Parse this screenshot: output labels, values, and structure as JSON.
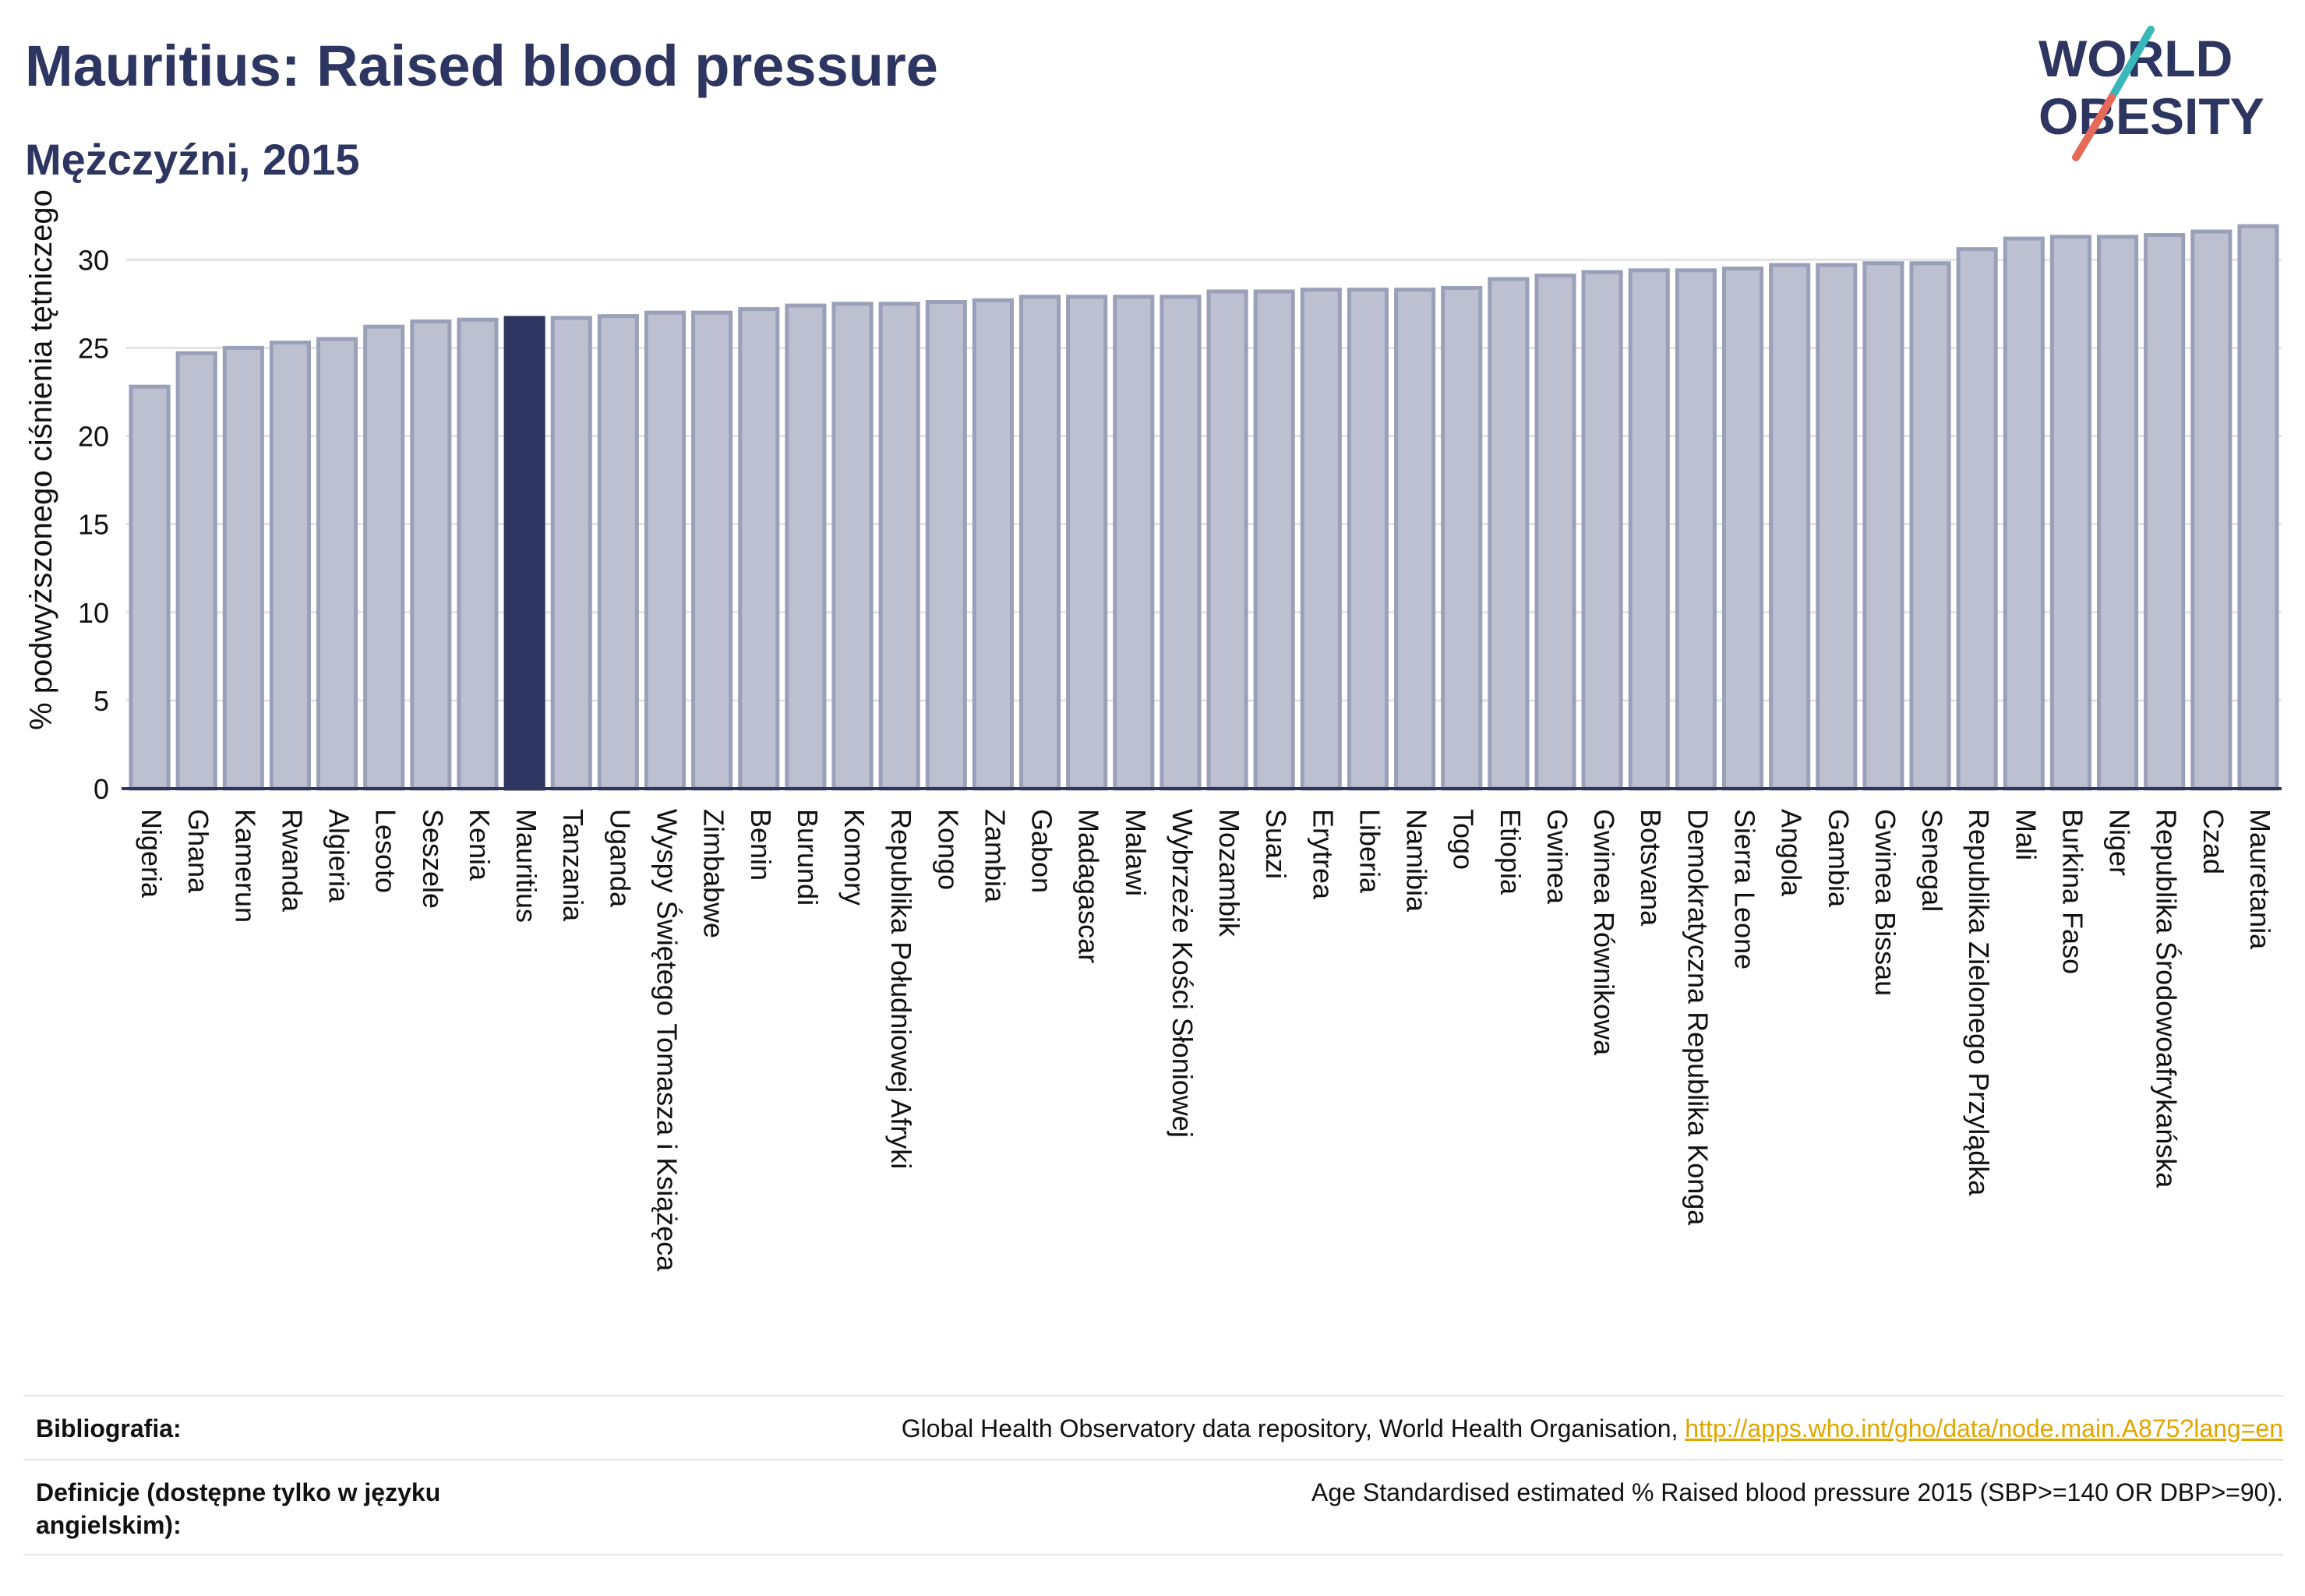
{
  "header": {
    "title": "Mauritius: Raised blood pressure",
    "subtitle": "Mężczyźni, 2015"
  },
  "logo": {
    "line1": "WORLD",
    "line2": "OBESITY",
    "colors": {
      "text": "#2d3561",
      "slash_top": "#3ab7b9",
      "slash_bottom": "#e56a5a"
    }
  },
  "colors": {
    "bar_fill": "#bcc0d0",
    "bar_stroke": "#9aa0b8",
    "highlight": "#2d3561",
    "axis": "#2d3561",
    "grid": "#e3e3e3"
  },
  "chart_data": {
    "type": "bar",
    "title": "Mauritius: Raised blood pressure",
    "subtitle": "Mężczyźni, 2015",
    "ylabel": "% podwyższonego ciśnienia tętniczego",
    "xlabel": "",
    "ylim": [
      0,
      32
    ],
    "yticks": [
      0,
      5,
      10,
      15,
      20,
      25,
      30
    ],
    "grid": true,
    "highlight": "Mauritius",
    "categories": [
      "Nigeria",
      "Ghana",
      "Kamerun",
      "Rwanda",
      "Algieria",
      "Lesoto",
      "Seszele",
      "Kenia",
      "Mauritius",
      "Tanzania",
      "Uganda",
      "Wyspy Świętego Tomasza i Książęca",
      "Zimbabwe",
      "Benin",
      "Burundi",
      "Komory",
      "Republika Południowej Afryki",
      "Kongo",
      "Zambia",
      "Gabon",
      "Madagascar",
      "Malawi",
      "Wybrzeże Kości Słoniowej",
      "Mozambik",
      "Suazi",
      "Erytrea",
      "Liberia",
      "Namibia",
      "Togo",
      "Etiopia",
      "Gwinea",
      "Gwinea Równikowa",
      "Botsvana",
      "Demokratyczna Republika Konga",
      "Sierra Leone",
      "Angola",
      "Gambia",
      "Gwinea Bissau",
      "Senegal",
      "Republika Zielonego Przylądka",
      "Mali",
      "Burkina Faso",
      "Niger",
      "Republika Środowoafrykańska",
      "Czad",
      "Mauretania"
    ],
    "values": [
      22.8,
      24.7,
      25.0,
      25.3,
      25.5,
      26.2,
      26.5,
      26.6,
      26.7,
      26.7,
      26.8,
      27.0,
      27.0,
      27.2,
      27.4,
      27.5,
      27.5,
      27.6,
      27.7,
      27.9,
      27.9,
      27.9,
      27.9,
      28.2,
      28.2,
      28.3,
      28.3,
      28.3,
      28.4,
      28.9,
      29.1,
      29.3,
      29.4,
      29.4,
      29.5,
      29.7,
      29.7,
      29.8,
      29.8,
      30.6,
      31.2,
      31.3,
      31.3,
      31.4,
      31.6,
      31.9
    ]
  },
  "footer": {
    "bibliography_label": "Bibliografia:",
    "bibliography_text": "Global Health Observatory data repository, World Health Organisation, ",
    "bibliography_link": "http://apps.who.int/gho/data/node.main.A875?lang=en",
    "definitions_label": "Definicje (dostępne tylko w języku angielskim):",
    "definitions_text": "Age Standardised estimated % Raised blood pressure 2015 (SBP>=140 OR DBP>=90)."
  }
}
